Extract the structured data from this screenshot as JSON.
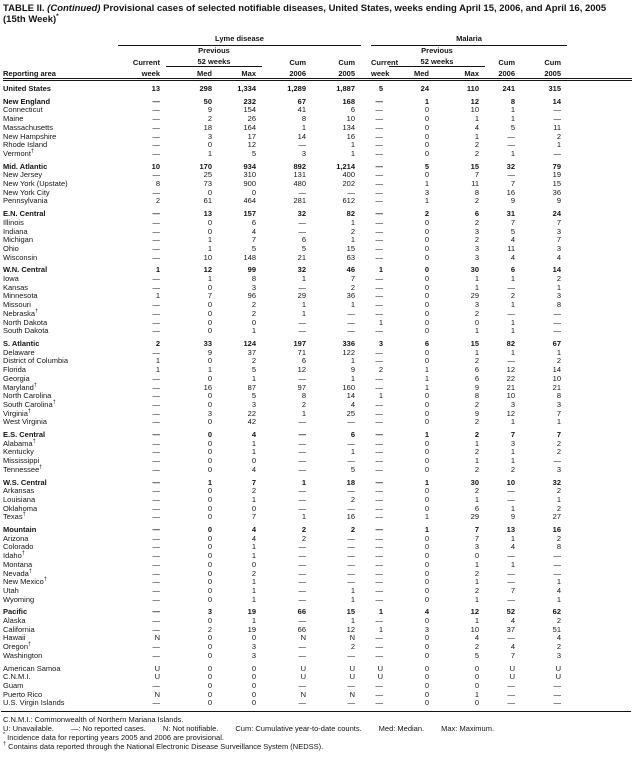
{
  "title": {
    "table_label": "TABLE II.",
    "continued": "(Continued)",
    "rest": "Provisional cases of selected notifiable diseases, United States, weeks ending April 15, 2006, and April 16, 2005",
    "week_note": "(15th Week)",
    "week_note_marker": "*"
  },
  "header": {
    "reporting_area": "Reporting area",
    "lyme_group": "Lyme disease",
    "malaria_group": "Malaria",
    "previous": "Previous",
    "current": "Current",
    "week": "week",
    "weeks52": "52 weeks",
    "med": "Med",
    "max": "Max",
    "cum": "Cum",
    "y2006": "2006",
    "y2005": "2005"
  },
  "rows": [
    {
      "area": "United States",
      "bold": true,
      "gap": true,
      "v": [
        "13",
        "298",
        "1,334",
        "1,289",
        "1,887",
        "5",
        "24",
        "110",
        "241",
        "315"
      ]
    },
    {
      "area": "New England",
      "bold": true,
      "gap": true,
      "v": [
        "—",
        "50",
        "232",
        "67",
        "168",
        "—",
        "1",
        "12",
        "8",
        "14"
      ]
    },
    {
      "area": "Connecticut",
      "v": [
        "—",
        "9",
        "154",
        "41",
        "6",
        "—",
        "0",
        "10",
        "1",
        "—"
      ]
    },
    {
      "area": "Maine",
      "v": [
        "—",
        "2",
        "26",
        "8",
        "10",
        "—",
        "0",
        "1",
        "1",
        "—"
      ]
    },
    {
      "area": "Massachusetts",
      "v": [
        "—",
        "18",
        "164",
        "1",
        "134",
        "—",
        "0",
        "4",
        "5",
        "11"
      ]
    },
    {
      "area": "New Hampshire",
      "v": [
        "—",
        "3",
        "17",
        "14",
        "16",
        "—",
        "0",
        "1",
        "—",
        "2"
      ]
    },
    {
      "area": "Rhode Island",
      "v": [
        "—",
        "0",
        "12",
        "—",
        "1",
        "—",
        "0",
        "2",
        "—",
        "1"
      ]
    },
    {
      "area": "Vermont†",
      "v": [
        "—",
        "1",
        "5",
        "3",
        "1",
        "—",
        "0",
        "2",
        "1",
        "—"
      ]
    },
    {
      "area": "Mid. Atlantic",
      "bold": true,
      "gap": true,
      "v": [
        "10",
        "170",
        "934",
        "892",
        "1,214",
        "—",
        "5",
        "15",
        "32",
        "79"
      ]
    },
    {
      "area": "New Jersey",
      "v": [
        "—",
        "25",
        "310",
        "131",
        "400",
        "—",
        "0",
        "7",
        "—",
        "19"
      ]
    },
    {
      "area": "New York (Upstate)",
      "v": [
        "8",
        "73",
        "900",
        "480",
        "202",
        "—",
        "1",
        "11",
        "7",
        "15"
      ]
    },
    {
      "area": "New York City",
      "v": [
        "—",
        "0",
        "0",
        "—",
        "—",
        "—",
        "3",
        "8",
        "16",
        "36"
      ]
    },
    {
      "area": "Pennsylvania",
      "v": [
        "2",
        "61",
        "464",
        "281",
        "612",
        "—",
        "1",
        "2",
        "9",
        "9"
      ]
    },
    {
      "area": "E.N. Central",
      "bold": true,
      "gap": true,
      "v": [
        "—",
        "13",
        "157",
        "32",
        "82",
        "—",
        "2",
        "6",
        "31",
        "24"
      ]
    },
    {
      "area": "Illinois",
      "v": [
        "—",
        "0",
        "6",
        "—",
        "1",
        "—",
        "0",
        "2",
        "7",
        "7"
      ]
    },
    {
      "area": "Indiana",
      "v": [
        "—",
        "0",
        "4",
        "—",
        "2",
        "—",
        "0",
        "3",
        "5",
        "3"
      ]
    },
    {
      "area": "Michigan",
      "v": [
        "—",
        "1",
        "7",
        "6",
        "1",
        "—",
        "0",
        "2",
        "4",
        "7"
      ]
    },
    {
      "area": "Ohio",
      "v": [
        "—",
        "1",
        "5",
        "5",
        "15",
        "—",
        "0",
        "3",
        "11",
        "3"
      ]
    },
    {
      "area": "Wisconsin",
      "v": [
        "—",
        "10",
        "148",
        "21",
        "63",
        "—",
        "0",
        "3",
        "4",
        "4"
      ]
    },
    {
      "area": "W.N. Central",
      "bold": true,
      "gap": true,
      "v": [
        "1",
        "12",
        "99",
        "32",
        "46",
        "1",
        "0",
        "30",
        "6",
        "14"
      ]
    },
    {
      "area": "Iowa",
      "v": [
        "—",
        "1",
        "8",
        "1",
        "7",
        "—",
        "0",
        "1",
        "1",
        "2"
      ]
    },
    {
      "area": "Kansas",
      "v": [
        "—",
        "0",
        "3",
        "—",
        "2",
        "—",
        "0",
        "1",
        "—",
        "1"
      ]
    },
    {
      "area": "Minnesota",
      "v": [
        "1",
        "7",
        "96",
        "29",
        "36",
        "—",
        "0",
        "29",
        "2",
        "3"
      ]
    },
    {
      "area": "Missouri",
      "v": [
        "—",
        "0",
        "2",
        "1",
        "1",
        "—",
        "0",
        "3",
        "1",
        "8"
      ]
    },
    {
      "area": "Nebraska†",
      "v": [
        "—",
        "0",
        "2",
        "1",
        "—",
        "—",
        "0",
        "2",
        "—",
        "—"
      ]
    },
    {
      "area": "North Dakota",
      "v": [
        "—",
        "0",
        "0",
        "—",
        "—",
        "1",
        "0",
        "0",
        "1",
        "—"
      ]
    },
    {
      "area": "South Dakota",
      "v": [
        "—",
        "0",
        "1",
        "—",
        "—",
        "—",
        "0",
        "1",
        "1",
        "—"
      ]
    },
    {
      "area": "S. Atlantic",
      "bold": true,
      "gap": true,
      "v": [
        "2",
        "33",
        "124",
        "197",
        "336",
        "3",
        "6",
        "15",
        "82",
        "67"
      ]
    },
    {
      "area": "Delaware",
      "v": [
        "—",
        "9",
        "37",
        "71",
        "122",
        "—",
        "0",
        "1",
        "1",
        "1"
      ]
    },
    {
      "area": "District of Columbia",
      "v": [
        "1",
        "0",
        "2",
        "6",
        "1",
        "—",
        "0",
        "2",
        "—",
        "2"
      ]
    },
    {
      "area": "Florida",
      "v": [
        "1",
        "1",
        "5",
        "12",
        "9",
        "2",
        "1",
        "6",
        "12",
        "14"
      ]
    },
    {
      "area": "Georgia",
      "v": [
        "—",
        "0",
        "1",
        "—",
        "1",
        "—",
        "1",
        "6",
        "22",
        "10"
      ]
    },
    {
      "area": "Maryland†",
      "v": [
        "—",
        "16",
        "87",
        "97",
        "160",
        "—",
        "1",
        "9",
        "21",
        "21"
      ]
    },
    {
      "area": "North Carolina",
      "v": [
        "—",
        "0",
        "5",
        "8",
        "14",
        "1",
        "0",
        "8",
        "10",
        "8"
      ]
    },
    {
      "area": "South Carolina†",
      "v": [
        "—",
        "0",
        "3",
        "2",
        "4",
        "—",
        "0",
        "2",
        "3",
        "3"
      ]
    },
    {
      "area": "Virginia†",
      "v": [
        "—",
        "3",
        "22",
        "1",
        "25",
        "—",
        "0",
        "9",
        "12",
        "7"
      ]
    },
    {
      "area": "West Virginia",
      "v": [
        "—",
        "0",
        "42",
        "—",
        "—",
        "—",
        "0",
        "2",
        "1",
        "1"
      ]
    },
    {
      "area": "E.S. Central",
      "bold": true,
      "gap": true,
      "v": [
        "—",
        "0",
        "4",
        "—",
        "6",
        "—",
        "1",
        "2",
        "7",
        "7"
      ]
    },
    {
      "area": "Alabama†",
      "v": [
        "—",
        "0",
        "1",
        "—",
        "—",
        "—",
        "0",
        "1",
        "3",
        "2"
      ]
    },
    {
      "area": "Kentucky",
      "v": [
        "—",
        "0",
        "1",
        "—",
        "1",
        "—",
        "0",
        "2",
        "1",
        "2"
      ]
    },
    {
      "area": "Mississippi",
      "v": [
        "—",
        "0",
        "0",
        "—",
        "—",
        "—",
        "0",
        "1",
        "1",
        "—"
      ]
    },
    {
      "area": "Tennessee†",
      "v": [
        "—",
        "0",
        "4",
        "—",
        "5",
        "—",
        "0",
        "2",
        "2",
        "3"
      ]
    },
    {
      "area": "W.S. Central",
      "bold": true,
      "gap": true,
      "v": [
        "—",
        "1",
        "7",
        "1",
        "18",
        "—",
        "1",
        "30",
        "10",
        "32"
      ]
    },
    {
      "area": "Arkansas",
      "v": [
        "—",
        "0",
        "2",
        "—",
        "—",
        "—",
        "0",
        "2",
        "—",
        "2"
      ]
    },
    {
      "area": "Louisiana",
      "v": [
        "—",
        "0",
        "1",
        "—",
        "2",
        "—",
        "0",
        "1",
        "—",
        "1"
      ]
    },
    {
      "area": "Oklahoma",
      "v": [
        "—",
        "0",
        "0",
        "—",
        "—",
        "—",
        "0",
        "6",
        "1",
        "2"
      ]
    },
    {
      "area": "Texas†",
      "v": [
        "—",
        "0",
        "7",
        "1",
        "16",
        "—",
        "1",
        "29",
        "9",
        "27"
      ]
    },
    {
      "area": "Mountain",
      "bold": true,
      "gap": true,
      "v": [
        "—",
        "0",
        "4",
        "2",
        "2",
        "—",
        "1",
        "7",
        "13",
        "16"
      ]
    },
    {
      "area": "Arizona",
      "v": [
        "—",
        "0",
        "4",
        "2",
        "—",
        "—",
        "0",
        "7",
        "1",
        "2"
      ]
    },
    {
      "area": "Colorado",
      "v": [
        "—",
        "0",
        "1",
        "—",
        "—",
        "—",
        "0",
        "3",
        "4",
        "8"
      ]
    },
    {
      "area": "Idaho†",
      "v": [
        "—",
        "0",
        "1",
        "—",
        "—",
        "—",
        "0",
        "0",
        "—",
        "—"
      ]
    },
    {
      "area": "Montana",
      "v": [
        "—",
        "0",
        "0",
        "—",
        "—",
        "—",
        "0",
        "1",
        "1",
        "—"
      ]
    },
    {
      "area": "Nevada†",
      "v": [
        "—",
        "0",
        "2",
        "—",
        "—",
        "—",
        "0",
        "2",
        "—",
        "—"
      ]
    },
    {
      "area": "New Mexico†",
      "v": [
        "—",
        "0",
        "1",
        "—",
        "—",
        "—",
        "0",
        "1",
        "—",
        "1"
      ]
    },
    {
      "area": "Utah",
      "v": [
        "—",
        "0",
        "1",
        "—",
        "1",
        "—",
        "0",
        "2",
        "7",
        "4"
      ]
    },
    {
      "area": "Wyoming",
      "v": [
        "—",
        "0",
        "1",
        "—",
        "1",
        "—",
        "0",
        "1",
        "—",
        "1"
      ]
    },
    {
      "area": "Pacific",
      "bold": true,
      "gap": true,
      "v": [
        "—",
        "3",
        "19",
        "66",
        "15",
        "1",
        "4",
        "12",
        "52",
        "62"
      ]
    },
    {
      "area": "Alaska",
      "v": [
        "—",
        "0",
        "1",
        "—",
        "1",
        "—",
        "0",
        "1",
        "4",
        "2"
      ]
    },
    {
      "area": "California",
      "v": [
        "—",
        "2",
        "19",
        "66",
        "12",
        "1",
        "3",
        "10",
        "37",
        "51"
      ]
    },
    {
      "area": "Hawaii",
      "v": [
        "N",
        "0",
        "0",
        "N",
        "N",
        "—",
        "0",
        "4",
        "—",
        "4"
      ]
    },
    {
      "area": "Oregon†",
      "v": [
        "—",
        "0",
        "3",
        "—",
        "2",
        "—",
        "0",
        "2",
        "4",
        "2"
      ]
    },
    {
      "area": "Washington",
      "v": [
        "—",
        "0",
        "3",
        "—",
        "—",
        "—",
        "0",
        "5",
        "7",
        "3"
      ]
    },
    {
      "area": "American Samoa",
      "gap": true,
      "v": [
        "U",
        "0",
        "0",
        "U",
        "U",
        "U",
        "0",
        "0",
        "U",
        "U"
      ]
    },
    {
      "area": "C.N.M.I.",
      "v": [
        "U",
        "0",
        "0",
        "U",
        "U",
        "U",
        "0",
        "0",
        "U",
        "U"
      ]
    },
    {
      "area": "Guam",
      "v": [
        "—",
        "0",
        "0",
        "—",
        "—",
        "—",
        "0",
        "0",
        "—",
        "—"
      ]
    },
    {
      "area": "Puerto Rico",
      "v": [
        "N",
        "0",
        "0",
        "N",
        "N",
        "—",
        "0",
        "1",
        "—",
        "—"
      ]
    },
    {
      "area": "U.S. Virgin Islands",
      "v": [
        "—",
        "0",
        "0",
        "—",
        "—",
        "—",
        "0",
        "0",
        "—",
        "—"
      ]
    }
  ],
  "footnotes": {
    "cnmi": "C.N.M.I.: Commonwealth of Northern Mariana Islands.",
    "legend": [
      "U: Unavailable.",
      "—: No reported cases.",
      "N: Not notifiable.",
      "Cum: Cumulative year-to-date counts.",
      "Med: Median.",
      "Max: Maximum."
    ],
    "star_marker": "*",
    "star": "Incidence data for reporting years 2005 and 2006 are provisional.",
    "dagger_marker": "†",
    "dagger": "Contains data reported through the National Electronic Disease Surveillance System (NEDSS)."
  }
}
